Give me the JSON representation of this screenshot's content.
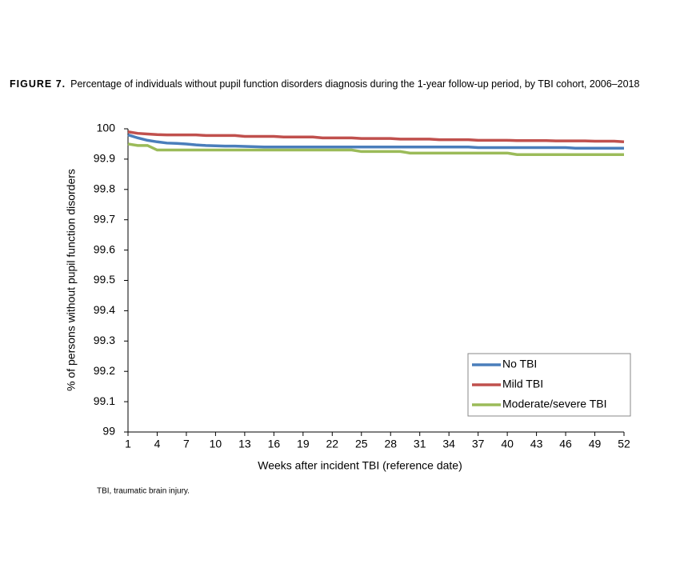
{
  "chart_data": {
    "type": "line",
    "figure_label": "FIGURE 7.",
    "title": "Percentage of individuals without pupil function disorders diagnosis during the 1-year follow-up period, by TBI cohort, 2006–2018",
    "x_label": "Weeks after incident TBI (reference date)",
    "y_label": "% of persons without pupil function disorders",
    "footnote": "TBI, traumatic brain injury.",
    "x": [
      1,
      2,
      3,
      4,
      5,
      6,
      7,
      8,
      9,
      10,
      11,
      12,
      13,
      14,
      15,
      16,
      17,
      18,
      19,
      20,
      21,
      22,
      23,
      24,
      25,
      26,
      27,
      28,
      29,
      30,
      31,
      32,
      33,
      34,
      35,
      36,
      37,
      38,
      39,
      40,
      41,
      42,
      43,
      44,
      45,
      46,
      47,
      48,
      49,
      50,
      51,
      52
    ],
    "xlim": [
      1,
      52
    ],
    "xticks": [
      1,
      4,
      7,
      10,
      13,
      16,
      19,
      22,
      25,
      28,
      31,
      34,
      37,
      40,
      43,
      46,
      49,
      52
    ],
    "ylim": [
      99,
      100
    ],
    "yticks": [
      99,
      99.1,
      99.2,
      99.3,
      99.4,
      99.5,
      99.6,
      99.7,
      99.8,
      99.9,
      100
    ],
    "grid": false,
    "legend": "lower right",
    "series": [
      {
        "name": "No TBI",
        "color": "#4a7ebb",
        "values": [
          99.98,
          99.97,
          99.962,
          99.957,
          99.953,
          99.952,
          99.95,
          99.947,
          99.945,
          99.944,
          99.943,
          99.943,
          99.942,
          99.941,
          99.94,
          99.94,
          99.94,
          99.94,
          99.94,
          99.94,
          99.94,
          99.94,
          99.94,
          99.94,
          99.94,
          99.94,
          99.94,
          99.94,
          99.94,
          99.94,
          99.94,
          99.94,
          99.94,
          99.94,
          99.94,
          99.94,
          99.938,
          99.938,
          99.938,
          99.938,
          99.938,
          99.938,
          99.938,
          99.938,
          99.938,
          99.938,
          99.936,
          99.936,
          99.936,
          99.936,
          99.936,
          99.936
        ]
      },
      {
        "name": "Mild TBI",
        "color": "#c0504d",
        "values": [
          99.99,
          99.985,
          99.983,
          99.981,
          99.98,
          99.98,
          99.98,
          99.98,
          99.978,
          99.978,
          99.978,
          99.978,
          99.975,
          99.975,
          99.975,
          99.975,
          99.973,
          99.973,
          99.973,
          99.973,
          99.97,
          99.97,
          99.97,
          99.97,
          99.968,
          99.968,
          99.968,
          99.968,
          99.966,
          99.966,
          99.966,
          99.966,
          99.964,
          99.964,
          99.964,
          99.964,
          99.962,
          99.962,
          99.962,
          99.962,
          99.961,
          99.961,
          99.961,
          99.961,
          99.96,
          99.96,
          99.96,
          99.96,
          99.959,
          99.959,
          99.959,
          99.957
        ]
      },
      {
        "name": "Moderate/severe TBI",
        "color": "#9bbb59",
        "values": [
          99.95,
          99.945,
          99.945,
          99.93,
          99.93,
          99.93,
          99.93,
          99.93,
          99.93,
          99.93,
          99.93,
          99.93,
          99.93,
          99.93,
          99.93,
          99.93,
          99.93,
          99.93,
          99.93,
          99.93,
          99.93,
          99.93,
          99.93,
          99.93,
          99.925,
          99.925,
          99.925,
          99.925,
          99.925,
          99.92,
          99.92,
          99.92,
          99.92,
          99.92,
          99.92,
          99.92,
          99.92,
          99.92,
          99.92,
          99.92,
          99.915,
          99.915,
          99.915,
          99.915,
          99.915,
          99.915,
          99.915,
          99.915,
          99.915,
          99.915,
          99.915,
          99.915
        ]
      }
    ]
  }
}
